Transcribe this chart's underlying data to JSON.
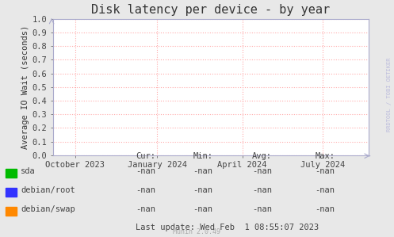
{
  "title": "Disk latency per device - by year",
  "ylabel": "Average IO Wait (seconds)",
  "bg_color": "#e8e8e8",
  "plot_bg_color": "#ffffff",
  "grid_color": "#ffaaaa",
  "axis_color": "#aaaacc",
  "ylim": [
    0.0,
    1.0
  ],
  "yticks": [
    0.0,
    0.1,
    0.2,
    0.3,
    0.4,
    0.5,
    0.6,
    0.7,
    0.8,
    0.9,
    1.0
  ],
  "xtick_labels": [
    "October 2023",
    "January 2024",
    "April 2024",
    "July 2024"
  ],
  "xtick_positions": [
    0.07,
    0.33,
    0.6,
    0.855
  ],
  "legend_entries": [
    {
      "label": "sda",
      "color": "#00bb00"
    },
    {
      "label": "debian/root",
      "color": "#3333ff"
    },
    {
      "label": "debian/swap",
      "color": "#ff8800"
    }
  ],
  "table_headers": [
    "Cur:",
    "Min:",
    "Avg:",
    "Max:"
  ],
  "table_values": [
    [
      "-nan",
      "-nan",
      "-nan",
      "-nan"
    ],
    [
      "-nan",
      "-nan",
      "-nan",
      "-nan"
    ],
    [
      "-nan",
      "-nan",
      "-nan",
      "-nan"
    ]
  ],
  "last_update": "Last update: Wed Feb  1 08:55:07 2023",
  "munin_version": "Munin 2.0.49",
  "watermark": "RRDTOOL / TOBI OETIKER",
  "title_fontsize": 11,
  "label_fontsize": 7.5,
  "tick_fontsize": 7.5,
  "watermark_fontsize": 5,
  "munin_fontsize": 6
}
